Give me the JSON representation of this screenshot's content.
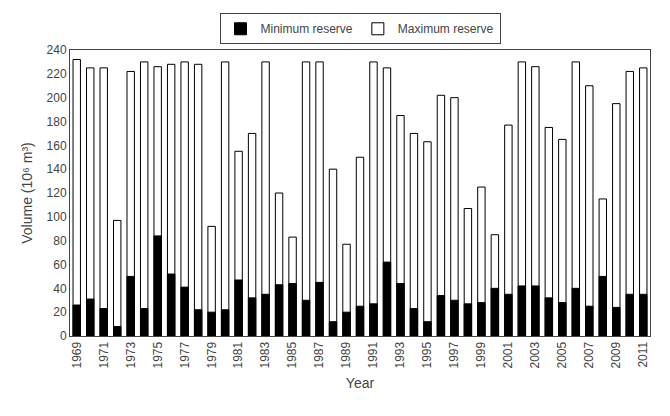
{
  "chart_data": {
    "type": "bar",
    "categories": [
      "1969",
      null,
      "1971",
      null,
      "1973",
      null,
      "1975",
      null,
      "1977",
      null,
      "1979",
      null,
      "1981",
      null,
      "1983",
      null,
      "1985",
      null,
      "1987",
      null,
      "1989",
      null,
      "1991",
      null,
      "1993",
      null,
      "1995",
      null,
      "1997",
      null,
      "1999",
      null,
      "2001",
      null,
      "2003",
      null,
      "2005",
      null,
      "2007",
      null,
      "2009",
      null,
      "2011"
    ],
    "series": [
      {
        "name": "Minimum reserve",
        "color": "#000000",
        "values": [
          26,
          31,
          23,
          8,
          50,
          23,
          84,
          52,
          41,
          22,
          20,
          22,
          47,
          32,
          35,
          43,
          44,
          30,
          45,
          12,
          20,
          25,
          27,
          62,
          44,
          23,
          12,
          34,
          30,
          27,
          28,
          40,
          35,
          42,
          42,
          32,
          28,
          40,
          25,
          50,
          24,
          35,
          35
        ]
      },
      {
        "name": "Maximum reserve",
        "color": "#ffffff",
        "values": [
          232,
          225,
          225,
          97,
          222,
          230,
          226,
          228,
          230,
          228,
          92,
          230,
          155,
          170,
          230,
          120,
          83,
          230,
          230,
          140,
          77,
          150,
          230,
          225,
          185,
          170,
          163,
          202,
          200,
          107,
          125,
          85,
          177,
          230,
          226,
          175,
          165,
          230,
          210,
          115,
          195,
          222,
          225
        ]
      }
    ],
    "xlabel": "Year",
    "ylabel": "Volume (10⁶ m³)",
    "ylim": [
      0,
      240
    ],
    "yticks": [
      0,
      20,
      40,
      60,
      80,
      100,
      120,
      140,
      160,
      180,
      200,
      220,
      240
    ],
    "stacked": false,
    "grid": false,
    "legend": "top"
  }
}
